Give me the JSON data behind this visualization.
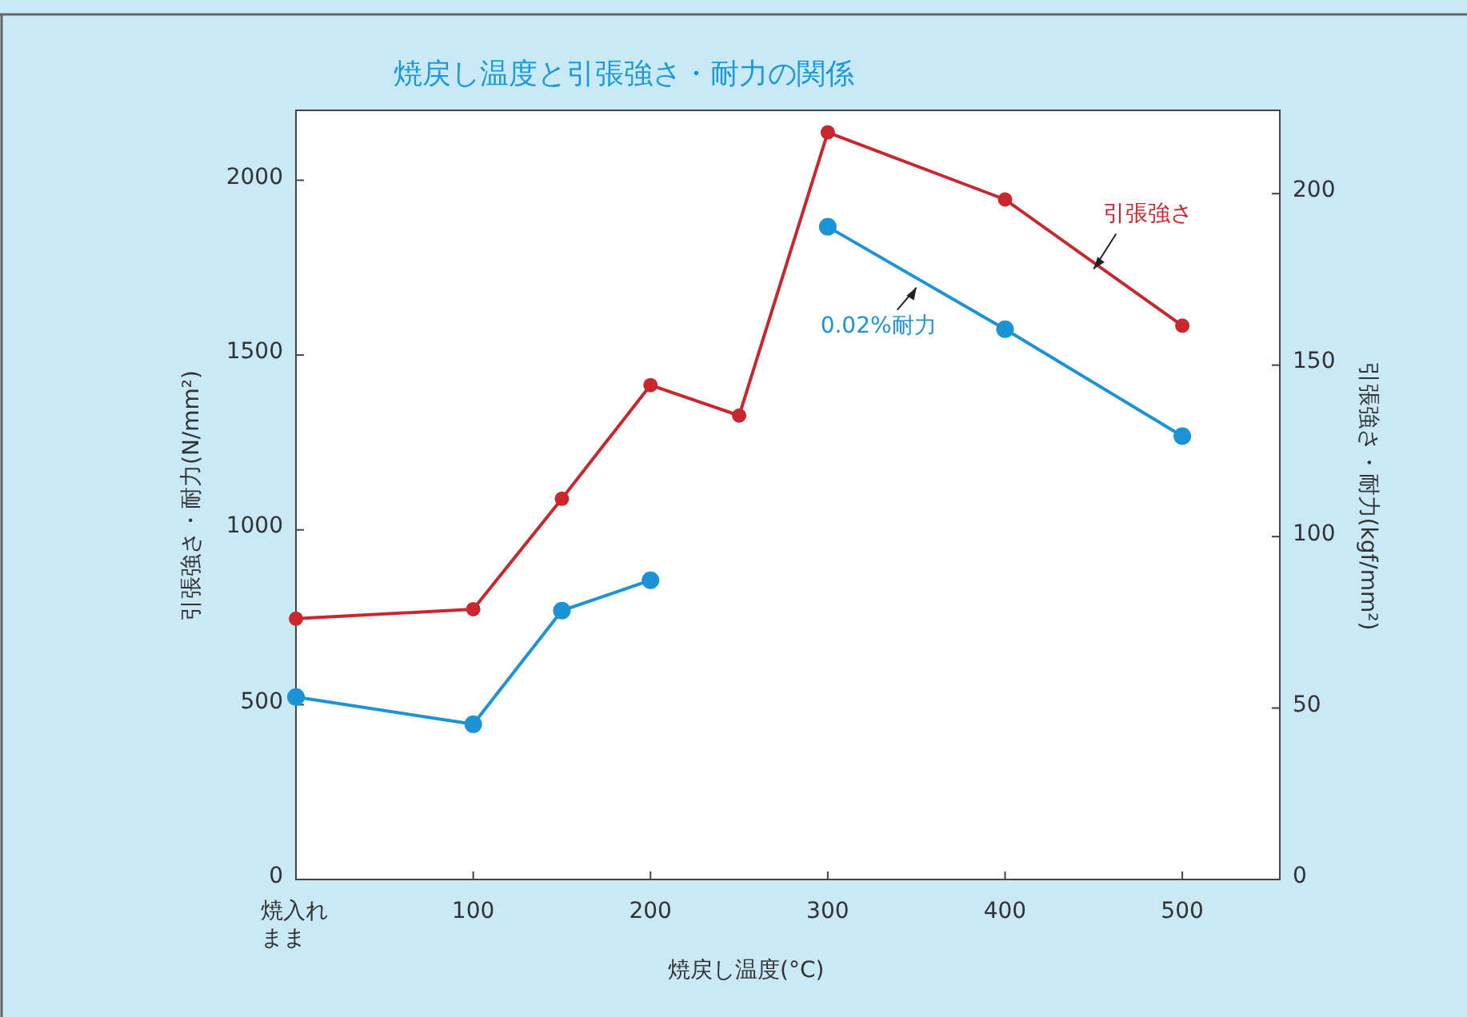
{
  "chart_data": {
    "type": "line",
    "title": "焼戻し温度と引張強さ・耐力の関係",
    "xlabel": "焼戻し温度(°C)",
    "ylabel": "引張強さ・耐力(N/mm²)",
    "y2label": "引張強さ・耐力(kgf/mm²)",
    "x": [
      0,
      100,
      150,
      200,
      250,
      300,
      400,
      500
    ],
    "xlim": [
      0,
      555
    ],
    "xticks": [
      {
        "value": 0,
        "label": "焼入れまま"
      },
      100,
      200,
      300,
      400,
      500
    ],
    "ylim": [
      0,
      2200
    ],
    "yticks": [
      0,
      500,
      1000,
      1500,
      2000
    ],
    "y2lim": [
      0,
      224.3
    ],
    "y2ticks": [
      0,
      50,
      100,
      150,
      200
    ],
    "marker": "circle",
    "series": [
      {
        "name": "引張強さ",
        "color": "#c8282d",
        "values": [
          746,
          773,
          1089,
          1414,
          1327,
          2137,
          1945,
          1584
        ]
      },
      {
        "name": "0.02%耐力",
        "color": "#1c93d4",
        "values": [
          522,
          444,
          769,
          856,
          null,
          1867,
          1574,
          1268
        ]
      }
    ]
  }
}
